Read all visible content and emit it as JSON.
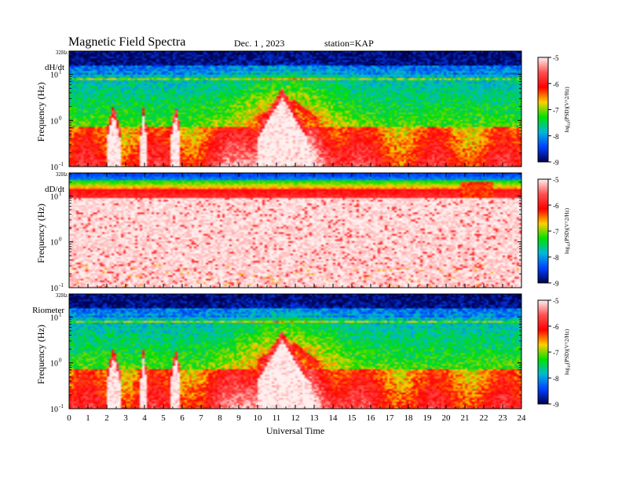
{
  "header": {
    "title": "Magnetic  Field  Spectra",
    "date": "Dec. 1  , 2023",
    "station": "station=KAP"
  },
  "chart_data": {
    "type": "heatmap",
    "xlabel": "Universal Time",
    "xlim": [
      0,
      24
    ],
    "x_ticks": [
      "0",
      "1",
      "2",
      "3",
      "4",
      "5",
      "6",
      "7",
      "8",
      "9",
      "10",
      "11",
      "12",
      "13",
      "14",
      "15",
      "16",
      "17",
      "18",
      "19",
      "20",
      "21",
      "22",
      "23",
      "24"
    ],
    "ylabel": "Frequency  (Hz)",
    "y_scale": "log",
    "ylim": [
      0.1,
      32
    ],
    "y_ticks": [
      {
        "value": 0.1,
        "base": "10",
        "exp": "-1"
      },
      {
        "value": 1,
        "base": "10",
        "exp": "0"
      },
      {
        "value": 10,
        "base": "10",
        "exp": "1"
      }
    ],
    "y_top_label": "32Hz",
    "colorbar": {
      "label_prefix": "log",
      "label_sub": "10",
      "label_suffix": "(PSD)(V^2/Hz)",
      "range": [
        -9,
        -5
      ],
      "ticks": [
        "-5",
        "-6",
        "-7",
        "-8",
        "-9"
      ],
      "colors": [
        "#fff0f0",
        "#ff5050",
        "#ff0000",
        "#ffd000",
        "#00e000",
        "#00b8d8",
        "#0040ff",
        "#000050"
      ]
    },
    "panels": [
      {
        "label": "dH/dt",
        "features": {
          "dark_band_top_log10_psd": -8.8,
          "line_freqs_hz": [
            8,
            11
          ],
          "quiet_intervals_ut": [
            [
              2.0,
              2.7
            ],
            [
              3.8,
              4.1
            ],
            [
              5.4,
              5.9
            ],
            [
              10.0,
              12.6
            ]
          ],
          "hot_peak_ut": [
            11.3,
            11.9
          ]
        }
      },
      {
        "label": "dD/dt",
        "features": {
          "top_band_log10_psd": -8.0,
          "line_freq_hz": 8,
          "low_freq_level_log10_psd": -5.1
        }
      },
      {
        "label": "Riometer",
        "features": {
          "dark_band_top_log10_psd": -8.8,
          "line_freqs_hz": [
            8,
            11
          ],
          "quiet_intervals_ut": [
            [
              2.0,
              2.7
            ],
            [
              3.8,
              4.1
            ],
            [
              5.4,
              5.9
            ],
            [
              10.0,
              12.6
            ]
          ],
          "hot_peak_ut": [
            11.3,
            11.9
          ]
        }
      }
    ]
  }
}
